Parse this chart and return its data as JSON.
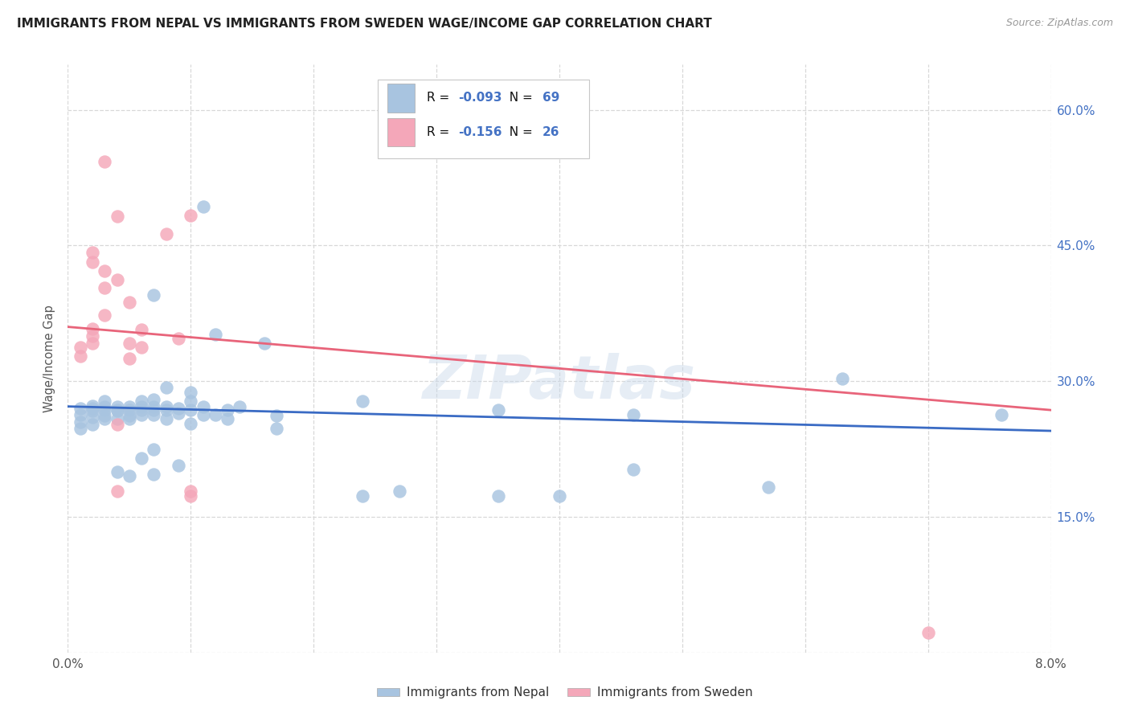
{
  "title": "IMMIGRANTS FROM NEPAL VS IMMIGRANTS FROM SWEDEN WAGE/INCOME GAP CORRELATION CHART",
  "source": "Source: ZipAtlas.com",
  "ylabel": "Wage/Income Gap",
  "x_min": 0.0,
  "x_max": 0.08,
  "y_min": 0.0,
  "y_max": 0.65,
  "x_ticks": [
    0.0,
    0.01,
    0.02,
    0.03,
    0.04,
    0.05,
    0.06,
    0.07,
    0.08
  ],
  "x_tick_labels": [
    "0.0%",
    "",
    "",
    "",
    "",
    "",
    "",
    "",
    "8.0%"
  ],
  "y_ticks": [
    0.0,
    0.15,
    0.3,
    0.45,
    0.6
  ],
  "y_tick_labels_left": [
    "",
    "",
    "",
    "",
    ""
  ],
  "y_tick_labels_right": [
    "",
    "15.0%",
    "30.0%",
    "45.0%",
    "60.0%"
  ],
  "nepal_R": "-0.093",
  "nepal_N": "69",
  "sweden_R": "-0.156",
  "sweden_N": "26",
  "nepal_color": "#a8c4e0",
  "sweden_color": "#f4a7b9",
  "nepal_line_color": "#3a6bc4",
  "sweden_line_color": "#e8647a",
  "background_color": "#ffffff",
  "grid_color": "#d8d8d8",
  "watermark": "ZIPatlas",
  "nepal_points": [
    [
      0.001,
      0.255
    ],
    [
      0.001,
      0.263
    ],
    [
      0.001,
      0.27
    ],
    [
      0.001,
      0.248
    ],
    [
      0.002,
      0.27
    ],
    [
      0.002,
      0.267
    ],
    [
      0.002,
      0.273
    ],
    [
      0.002,
      0.26
    ],
    [
      0.002,
      0.252
    ],
    [
      0.003,
      0.278
    ],
    [
      0.003,
      0.268
    ],
    [
      0.003,
      0.272
    ],
    [
      0.003,
      0.262
    ],
    [
      0.003,
      0.258
    ],
    [
      0.004,
      0.272
    ],
    [
      0.004,
      0.267
    ],
    [
      0.004,
      0.268
    ],
    [
      0.004,
      0.258
    ],
    [
      0.004,
      0.2
    ],
    [
      0.005,
      0.272
    ],
    [
      0.005,
      0.268
    ],
    [
      0.005,
      0.262
    ],
    [
      0.005,
      0.258
    ],
    [
      0.005,
      0.195
    ],
    [
      0.006,
      0.278
    ],
    [
      0.006,
      0.272
    ],
    [
      0.006,
      0.268
    ],
    [
      0.006,
      0.263
    ],
    [
      0.006,
      0.215
    ],
    [
      0.007,
      0.395
    ],
    [
      0.007,
      0.28
    ],
    [
      0.007,
      0.272
    ],
    [
      0.007,
      0.268
    ],
    [
      0.007,
      0.263
    ],
    [
      0.007,
      0.225
    ],
    [
      0.007,
      0.197
    ],
    [
      0.008,
      0.293
    ],
    [
      0.008,
      0.272
    ],
    [
      0.008,
      0.268
    ],
    [
      0.008,
      0.258
    ],
    [
      0.009,
      0.27
    ],
    [
      0.009,
      0.265
    ],
    [
      0.009,
      0.207
    ],
    [
      0.01,
      0.288
    ],
    [
      0.01,
      0.278
    ],
    [
      0.01,
      0.268
    ],
    [
      0.01,
      0.253
    ],
    [
      0.011,
      0.493
    ],
    [
      0.011,
      0.272
    ],
    [
      0.011,
      0.263
    ],
    [
      0.012,
      0.352
    ],
    [
      0.012,
      0.263
    ],
    [
      0.013,
      0.268
    ],
    [
      0.013,
      0.258
    ],
    [
      0.014,
      0.272
    ],
    [
      0.016,
      0.342
    ],
    [
      0.017,
      0.262
    ],
    [
      0.017,
      0.248
    ],
    [
      0.024,
      0.278
    ],
    [
      0.024,
      0.173
    ],
    [
      0.027,
      0.178
    ],
    [
      0.035,
      0.268
    ],
    [
      0.035,
      0.173
    ],
    [
      0.04,
      0.173
    ],
    [
      0.046,
      0.263
    ],
    [
      0.046,
      0.202
    ],
    [
      0.057,
      0.183
    ],
    [
      0.063,
      0.303
    ],
    [
      0.076,
      0.263
    ]
  ],
  "sweden_points": [
    [
      0.001,
      0.337
    ],
    [
      0.001,
      0.328
    ],
    [
      0.002,
      0.442
    ],
    [
      0.002,
      0.432
    ],
    [
      0.002,
      0.358
    ],
    [
      0.002,
      0.35
    ],
    [
      0.002,
      0.342
    ],
    [
      0.003,
      0.543
    ],
    [
      0.003,
      0.422
    ],
    [
      0.003,
      0.403
    ],
    [
      0.003,
      0.373
    ],
    [
      0.004,
      0.482
    ],
    [
      0.004,
      0.412
    ],
    [
      0.004,
      0.252
    ],
    [
      0.004,
      0.178
    ],
    [
      0.005,
      0.387
    ],
    [
      0.005,
      0.342
    ],
    [
      0.005,
      0.325
    ],
    [
      0.006,
      0.357
    ],
    [
      0.006,
      0.337
    ],
    [
      0.008,
      0.463
    ],
    [
      0.009,
      0.347
    ],
    [
      0.01,
      0.483
    ],
    [
      0.01,
      0.178
    ],
    [
      0.01,
      0.173
    ],
    [
      0.07,
      0.022
    ]
  ],
  "nepal_trendline": [
    0.0,
    0.08,
    0.272,
    0.245
  ],
  "sweden_trendline": [
    0.0,
    0.08,
    0.36,
    0.268
  ]
}
